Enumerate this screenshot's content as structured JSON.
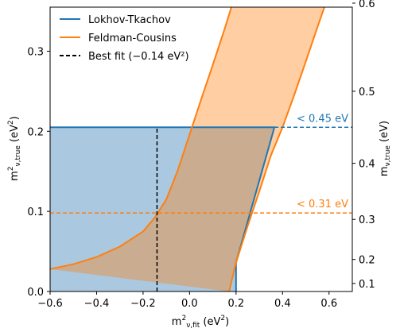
{
  "chart_data": {
    "type": "area",
    "xlabel": "m²ν,fit (eV²)",
    "ylabel": "m²ν,true (eV²)",
    "y2label": "mν,true (eV)",
    "xlim": [
      -0.6,
      0.7
    ],
    "ylim": [
      0.0,
      0.355
    ],
    "x_ticks": [
      -0.6,
      -0.4,
      -0.2,
      0.0,
      0.2,
      0.4,
      0.6
    ],
    "x_tick_labels": [
      "−0.6",
      "−0.4",
      "−0.2",
      "0.0",
      "0.2",
      "0.4",
      "0.6"
    ],
    "y_ticks": [
      0.0,
      0.1,
      0.2,
      0.3
    ],
    "y_tick_labels": [
      "0.0",
      "0.1",
      "0.2",
      "0.3"
    ],
    "y2_ticks": [
      0.1,
      0.2,
      0.3,
      0.4,
      0.5,
      0.6
    ],
    "y2_tick_labels": [
      "0.1",
      "0.2",
      "0.3",
      "0.4",
      "0.5",
      "0.6"
    ],
    "grid": false,
    "legend_position": "top-left",
    "series": [
      {
        "name": "Lokhov-Tkachov",
        "color": "#1f77b4",
        "fill": "#aac9e1",
        "band_polygon": [
          [
            -0.6,
            0.0
          ],
          [
            0.2,
            0.0
          ],
          [
            0.2,
            0.036
          ],
          [
            0.365,
            0.205
          ],
          [
            -0.6,
            0.205
          ]
        ]
      },
      {
        "name": "Feldman-Cousins",
        "color": "#ff7f0e",
        "fill": "rgba(255,127,14,0.38)",
        "lower_edge": [
          [
            0.17,
            0.0
          ],
          [
            0.2,
            0.036
          ],
          [
            0.25,
            0.082
          ],
          [
            0.3,
            0.125
          ],
          [
            0.35,
            0.17
          ],
          [
            0.4,
            0.205
          ],
          [
            0.45,
            0.245
          ],
          [
            0.5,
            0.287
          ],
          [
            0.55,
            0.33
          ],
          [
            0.58,
            0.355
          ]
        ],
        "upper_edge": [
          [
            -0.6,
            0.028
          ],
          [
            -0.5,
            0.034
          ],
          [
            -0.4,
            0.043
          ],
          [
            -0.3,
            0.056
          ],
          [
            -0.2,
            0.075
          ],
          [
            -0.15,
            0.092
          ],
          [
            -0.1,
            0.115
          ],
          [
            -0.05,
            0.152
          ],
          [
            0.0,
            0.196
          ],
          [
            0.05,
            0.24
          ],
          [
            0.1,
            0.283
          ],
          [
            0.15,
            0.327
          ],
          [
            0.18,
            0.355
          ]
        ]
      },
      {
        "name": "Best fit (−0.14 eV²)",
        "color": "#000000",
        "style": "dashed",
        "segment": [
          [
            -0.14,
            0.0
          ],
          [
            -0.14,
            0.205
          ]
        ]
      }
    ],
    "legend": [
      {
        "label": "Lokhov-Tkachov",
        "color": "#1f77b4",
        "style": "solid"
      },
      {
        "label": "Feldman-Cousins",
        "color": "#ff7f0e",
        "style": "solid"
      },
      {
        "label": "Best fit (−0.14 eV²)",
        "color": "#000000",
        "style": "dashed"
      }
    ],
    "limits": [
      {
        "label": "< 0.45 eV",
        "y": 0.205,
        "solid_to_x": 0.365,
        "color": "#1f77b4"
      },
      {
        "label": "< 0.31 eV",
        "y": 0.098,
        "color": "#ff7f0e"
      }
    ]
  }
}
